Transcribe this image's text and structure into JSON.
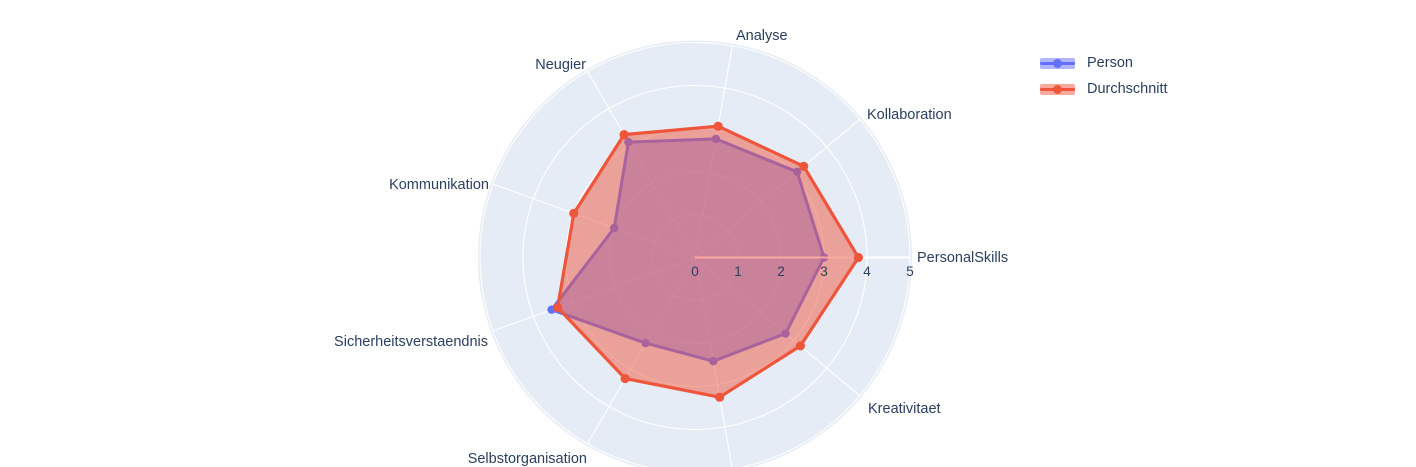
{
  "chart_data": {
    "type": "radar",
    "description": "Polar/radar skill chart comparing a person against the average, scale 0-5",
    "categories": [
      {
        "label": "PersonalSkills",
        "angle_deg": 0,
        "label_visible": true
      },
      {
        "label": "Kollaboration",
        "angle_deg": 40,
        "label_visible": true
      },
      {
        "label": "Analyse",
        "angle_deg": 80,
        "label_visible": true
      },
      {
        "label": "Neugier",
        "angle_deg": 120,
        "label_visible": true
      },
      {
        "label": "Kommunikation",
        "angle_deg": 160,
        "label_visible": true
      },
      {
        "label": "Sicherheitsverstaendnis",
        "angle_deg": 200,
        "label_visible": true
      },
      {
        "label": "Selbstorganisation",
        "angle_deg": 240,
        "label_visible": true
      },
      {
        "label": "",
        "angle_deg": 280,
        "label_visible": false
      },
      {
        "label": "Kreativitaet",
        "angle_deg": 320,
        "label_visible": true
      }
    ],
    "series": [
      {
        "name": "Person",
        "color": "#636EFA",
        "fill_opacity": 0.5,
        "line_width": 3,
        "marker_radius": 4.2,
        "values": [
          3.0,
          3.1,
          2.8,
          3.1,
          2.0,
          3.55,
          2.3,
          2.45,
          2.75
        ]
      },
      {
        "name": "Durchschnitt",
        "color": "#EF553B",
        "fill_opacity": 0.5,
        "line_width": 3.2,
        "marker_radius": 4.6,
        "values": [
          3.8,
          3.3,
          3.1,
          3.3,
          3.0,
          3.4,
          3.25,
          3.3,
          3.2
        ]
      }
    ],
    "radial_axis": {
      "range": [
        0,
        5
      ],
      "ticks": [
        "0",
        "1",
        "2",
        "3",
        "4",
        "5"
      ],
      "tick_values": [
        0,
        1,
        2,
        3,
        4,
        5
      ]
    },
    "colors": {
      "polar_background": "#E5ECF6",
      "grid": "#FFFFFF",
      "axis_line": "#FFFFFF",
      "label_text": "#2a3f5f"
    },
    "legend": {
      "position": "top-right",
      "items": [
        "Person",
        "Durchschnitt"
      ]
    }
  }
}
